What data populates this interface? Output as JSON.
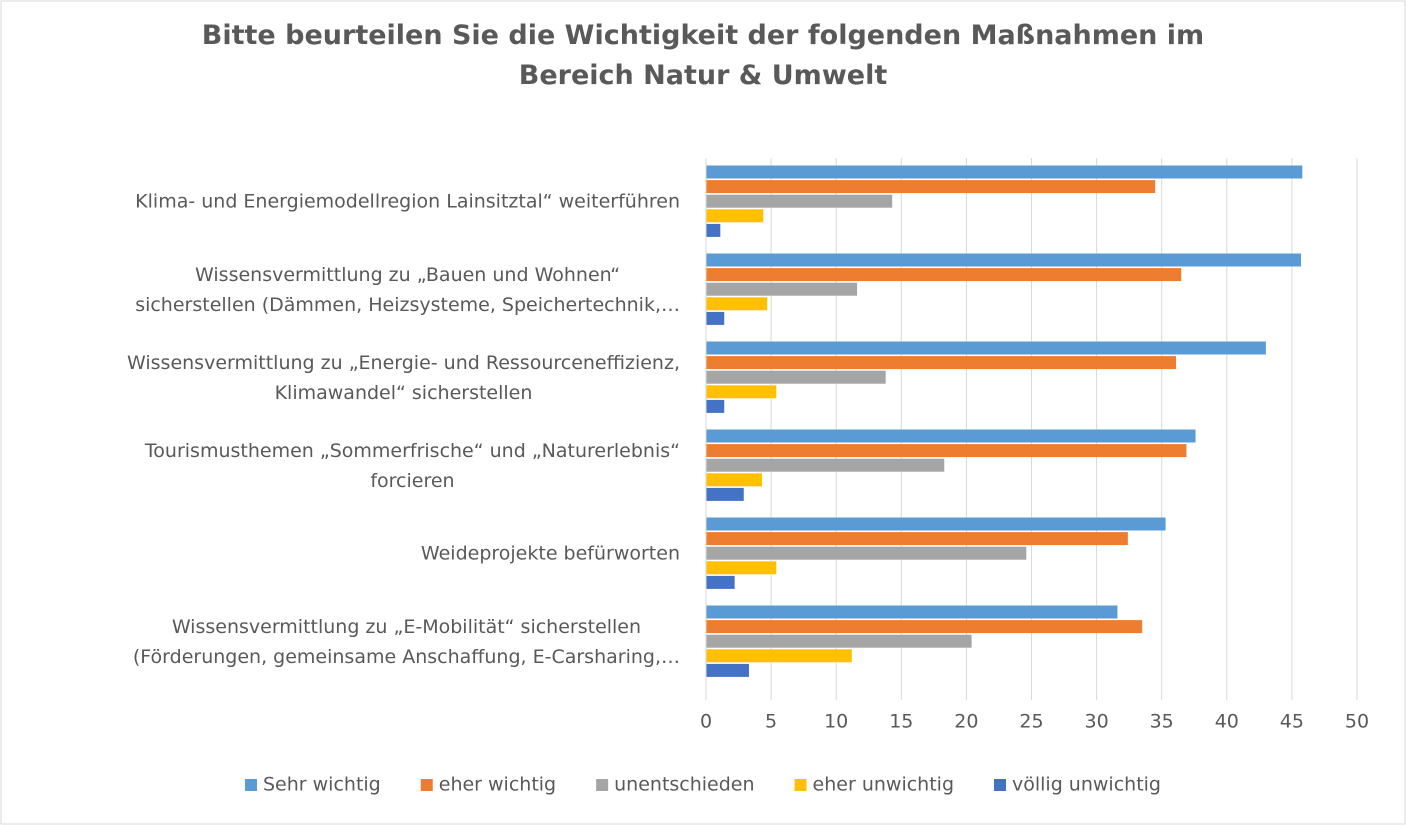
{
  "chart_data": {
    "type": "barh",
    "title": "Bitte beurteilen Sie die Wichtigkeit der folgenden Maßnahmen im\nBereich Natur & Umwelt",
    "categories": [
      "Klima- und Energiemodellregion Lainsitztal“ weiterführen",
      "Wissensvermittlung zu „Bauen und Wohnen“\nsicherstellen (Dämmen, Heizsysteme, Speichertechnik,…",
      "Wissensvermittlung zu „Energie- und Ressourceneffizienz,\nKlimawandel“ sicherstellen",
      "Tourismusthemen „Sommerfrische“ und „Naturerlebnis“\nforcieren",
      "Weideprojekte befürworten",
      "Wissensvermittlung zu „E-Mobilität“ sicherstellen\n(Förderungen, gemeinsame Anschaffung, E-Carsharing,…"
    ],
    "series": [
      {
        "name": "Sehr wichtig",
        "color": "#5b9bd5",
        "values": [
          45.8,
          45.7,
          43.0,
          37.6,
          35.3,
          31.6
        ]
      },
      {
        "name": "eher wichtig",
        "color": "#ed7d31",
        "values": [
          34.5,
          36.5,
          36.1,
          36.9,
          32.4,
          33.5
        ]
      },
      {
        "name": "unentschieden",
        "color": "#a5a5a5",
        "values": [
          14.3,
          11.6,
          13.8,
          18.3,
          24.6,
          20.4
        ]
      },
      {
        "name": "eher unwichtig",
        "color": "#ffc000",
        "values": [
          4.4,
          4.7,
          5.4,
          4.3,
          5.4,
          11.2
        ]
      },
      {
        "name": "völlig unwichtig",
        "color": "#4472c4",
        "values": [
          1.1,
          1.4,
          1.4,
          2.9,
          2.2,
          3.3
        ]
      }
    ],
    "xlim": [
      0,
      50
    ],
    "xticks": [
      0,
      5,
      10,
      15,
      20,
      25,
      30,
      35,
      40,
      45,
      50
    ],
    "grid": true,
    "legend": "bottom"
  }
}
